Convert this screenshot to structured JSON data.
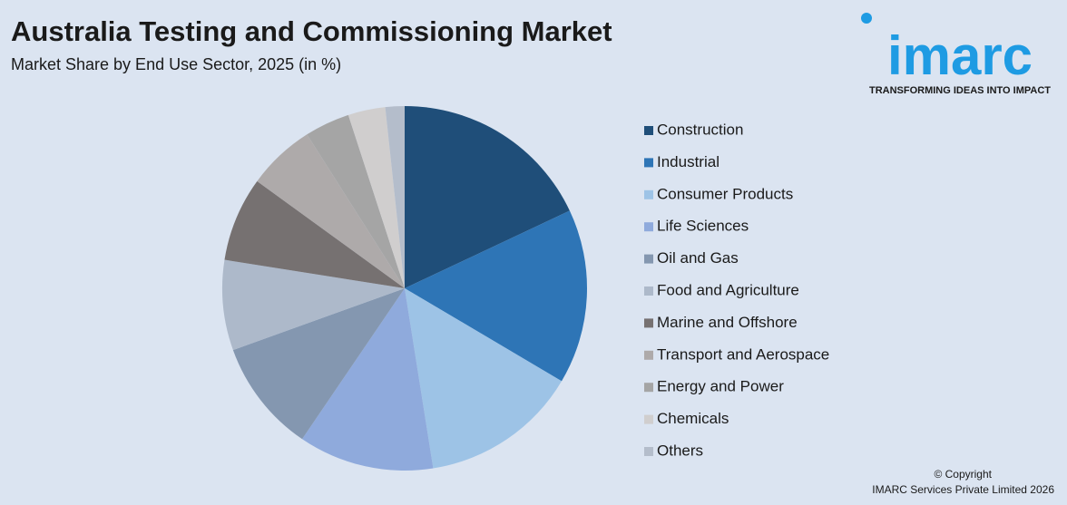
{
  "chart_data": {
    "type": "pie",
    "title": "Australia Testing and Commissioning Market",
    "subtitle": "Market Share by End Use Sector, 2025 (in %)",
    "categories": [
      "Construction",
      "Industrial",
      "Consumer Products",
      "Life Sciences",
      "Oil and Gas",
      "Food and Agriculture",
      "Marine and Offshore",
      "Transport and Aerospace",
      "Energy and Power",
      "Chemicals",
      "Others"
    ],
    "values": [
      18,
      15.5,
      14,
      12,
      10,
      8,
      7.5,
      6,
      4,
      3.3,
      1.7
    ],
    "colors": [
      "#1f4e79",
      "#2e75b6",
      "#9dc3e6",
      "#8faadc",
      "#8497b0",
      "#adb9ca",
      "#767171",
      "#aeaaaa",
      "#a5a5a5",
      "#d0cece",
      "#b4bdcb"
    ],
    "legend": "right"
  },
  "logo": {
    "name": "imarc",
    "tagline": "TRANSFORMING IDEAS INTO IMPACT"
  },
  "footer": {
    "copyright": "© Copyright",
    "company": "IMARC Services Private Limited 2026"
  }
}
